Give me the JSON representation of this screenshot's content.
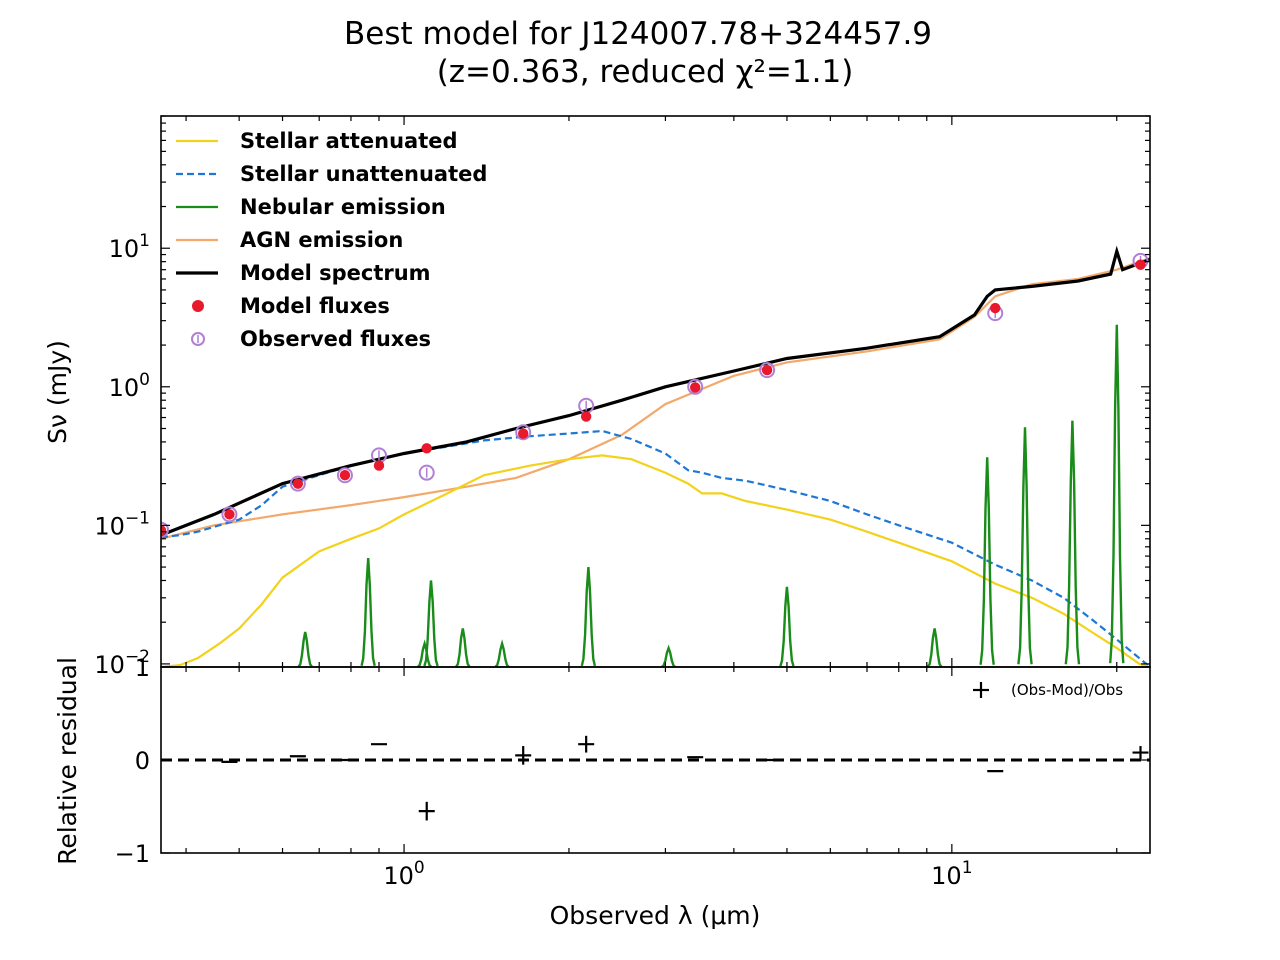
{
  "chart_data": {
    "type": "line",
    "title": "Best model for J124007.78+324457.9",
    "subtitle": "(z=0.363, reduced χ²=1.1)",
    "xlabel": "Observed λ (μm)",
    "xscale": "log",
    "xlim": [
      0.36,
      23.0
    ],
    "x_tick_labels": [
      {
        "value": 1,
        "base": "10",
        "exp": "0"
      },
      {
        "value": 10,
        "base": "10",
        "exp": "1"
      }
    ],
    "main_panel": {
      "ylabel": "Sν (mJy)",
      "yscale": "log",
      "ylim": [
        0.0095,
        90
      ],
      "y_tick_labels": [
        {
          "value": 10,
          "base": "10",
          "exp": "1"
        },
        {
          "value": 1,
          "base": "10",
          "exp": "0"
        },
        {
          "value": 0.1,
          "base": "10",
          "exp": "−1"
        },
        {
          "value": 0.01,
          "base": "10",
          "exp": "−2"
        }
      ],
      "legend_position": "top-left",
      "series": [
        {
          "name": "Stellar attenuated",
          "color": "#f2d21b",
          "style": "solid",
          "x": [
            0.36,
            0.39,
            0.42,
            0.46,
            0.5,
            0.55,
            0.6,
            0.7,
            0.8,
            0.9,
            1.0,
            1.2,
            1.4,
            1.7,
            2.0,
            2.3,
            2.6,
            3.0,
            3.3,
            3.5,
            3.8,
            4.2,
            5.0,
            6.0,
            7.0,
            8.0,
            10.0,
            12.0,
            14.0,
            16.0,
            18.0,
            20.0,
            22.0,
            23.0
          ],
          "y": [
            0.0095,
            0.0098,
            0.011,
            0.014,
            0.018,
            0.027,
            0.042,
            0.065,
            0.08,
            0.095,
            0.12,
            0.17,
            0.23,
            0.27,
            0.3,
            0.32,
            0.3,
            0.24,
            0.2,
            0.17,
            0.17,
            0.15,
            0.13,
            0.11,
            0.09,
            0.075,
            0.055,
            0.038,
            0.03,
            0.023,
            0.017,
            0.013,
            0.01,
            0.0095
          ]
        },
        {
          "name": "Stellar unattenuated",
          "color": "#1f77d4",
          "style": "dashed",
          "x": [
            0.36,
            0.39,
            0.42,
            0.46,
            0.5,
            0.55,
            0.6,
            0.7,
            0.8,
            0.9,
            1.0,
            1.2,
            1.4,
            1.7,
            2.0,
            2.3,
            2.6,
            3.0,
            3.3,
            3.5,
            3.8,
            4.2,
            5.0,
            6.0,
            7.0,
            8.0,
            10.0,
            12.0,
            14.0,
            16.0,
            18.0,
            20.0,
            22.0,
            23.0
          ],
          "y": [
            0.082,
            0.085,
            0.09,
            0.1,
            0.11,
            0.14,
            0.19,
            0.23,
            0.27,
            0.3,
            0.33,
            0.37,
            0.41,
            0.44,
            0.46,
            0.48,
            0.42,
            0.33,
            0.25,
            0.24,
            0.22,
            0.21,
            0.18,
            0.15,
            0.12,
            0.1,
            0.075,
            0.052,
            0.04,
            0.03,
            0.021,
            0.015,
            0.011,
            0.0095
          ]
        },
        {
          "name": "Nebular emission",
          "color": "#1a8c1a",
          "style": "solid",
          "baseline": 0.0095,
          "lines": [
            [
              0.66,
              0.017
            ],
            [
              0.86,
              0.058
            ],
            [
              1.09,
              0.014
            ],
            [
              1.12,
              0.04
            ],
            [
              1.28,
              0.018
            ],
            [
              1.51,
              0.014
            ],
            [
              2.17,
              0.05
            ],
            [
              3.04,
              0.013
            ],
            [
              5.0,
              0.036
            ],
            [
              9.3,
              0.018
            ],
            [
              11.6,
              0.31
            ],
            [
              13.6,
              0.51
            ],
            [
              16.6,
              0.57
            ],
            [
              20.0,
              2.8
            ]
          ]
        },
        {
          "name": "AGN emission",
          "color": "#f3a96a",
          "style": "solid",
          "x": [
            0.36,
            0.45,
            0.6,
            0.8,
            1.0,
            1.3,
            1.6,
            2.0,
            2.5,
            3.0,
            4.0,
            5.0,
            7.0,
            9.5,
            11.0,
            12.0,
            14.0,
            17.0,
            20.0,
            23.0
          ],
          "y": [
            0.08,
            0.1,
            0.12,
            0.14,
            0.16,
            0.19,
            0.22,
            0.3,
            0.45,
            0.75,
            1.2,
            1.5,
            1.8,
            2.2,
            3.2,
            4.5,
            5.5,
            6.0,
            7.0,
            8.5
          ]
        },
        {
          "name": "Model spectrum",
          "color": "#000000",
          "style": "solid",
          "x": [
            0.36,
            0.45,
            0.6,
            0.8,
            1.0,
            1.3,
            1.6,
            2.0,
            2.5,
            3.0,
            4.0,
            5.0,
            7.0,
            9.5,
            11.0,
            11.6,
            12.0,
            14.0,
            17.0,
            19.5,
            20.0,
            20.5,
            23.0
          ],
          "y": [
            0.085,
            0.12,
            0.2,
            0.27,
            0.33,
            0.4,
            0.5,
            0.62,
            0.8,
            1.0,
            1.3,
            1.6,
            1.9,
            2.3,
            3.3,
            4.5,
            5.0,
            5.3,
            5.8,
            6.5,
            9.5,
            7.0,
            8.3
          ]
        }
      ],
      "model_fluxes": {
        "name": "Model fluxes",
        "color": "#e8192c",
        "x": [
          0.36,
          0.48,
          0.64,
          0.78,
          0.9,
          1.1,
          1.65,
          2.15,
          3.4,
          4.6,
          12.0,
          22.1
        ],
        "y": [
          0.092,
          0.12,
          0.2,
          0.23,
          0.27,
          0.36,
          0.46,
          0.61,
          0.99,
          1.32,
          3.7,
          7.6
        ]
      },
      "observed_fluxes": {
        "name": "Observed fluxes",
        "color": "#b07fd6",
        "x": [
          0.36,
          0.48,
          0.64,
          0.78,
          0.9,
          1.1,
          1.65,
          2.15,
          3.4,
          4.6,
          12.0,
          22.1
        ],
        "y": [
          0.093,
          0.12,
          0.2,
          0.23,
          0.32,
          0.24,
          0.47,
          0.73,
          1.0,
          1.32,
          3.4,
          8.1
        ]
      }
    },
    "residual_panel": {
      "ylabel": "Relative residual",
      "ylim": [
        -1,
        1
      ],
      "y_tick_labels": [
        "1",
        "0",
        "−1"
      ],
      "legend_label": "(Obs-Mod)/Obs",
      "zero_line": "dashed",
      "x": [
        0.36,
        0.48,
        0.64,
        0.78,
        0.9,
        1.1,
        1.65,
        2.15,
        3.4,
        4.6,
        12.0,
        22.1
      ],
      "y": [
        0.0,
        -0.02,
        0.04,
        0.0,
        0.17,
        -0.55,
        0.05,
        0.17,
        0.03,
        0.0,
        -0.12,
        0.08
      ],
      "yerr": [
        0.0,
        0.0,
        0.0,
        0.0,
        0.0,
        0.1,
        0.1,
        0.09,
        0.0,
        0.0,
        0.0,
        0.07
      ]
    }
  }
}
